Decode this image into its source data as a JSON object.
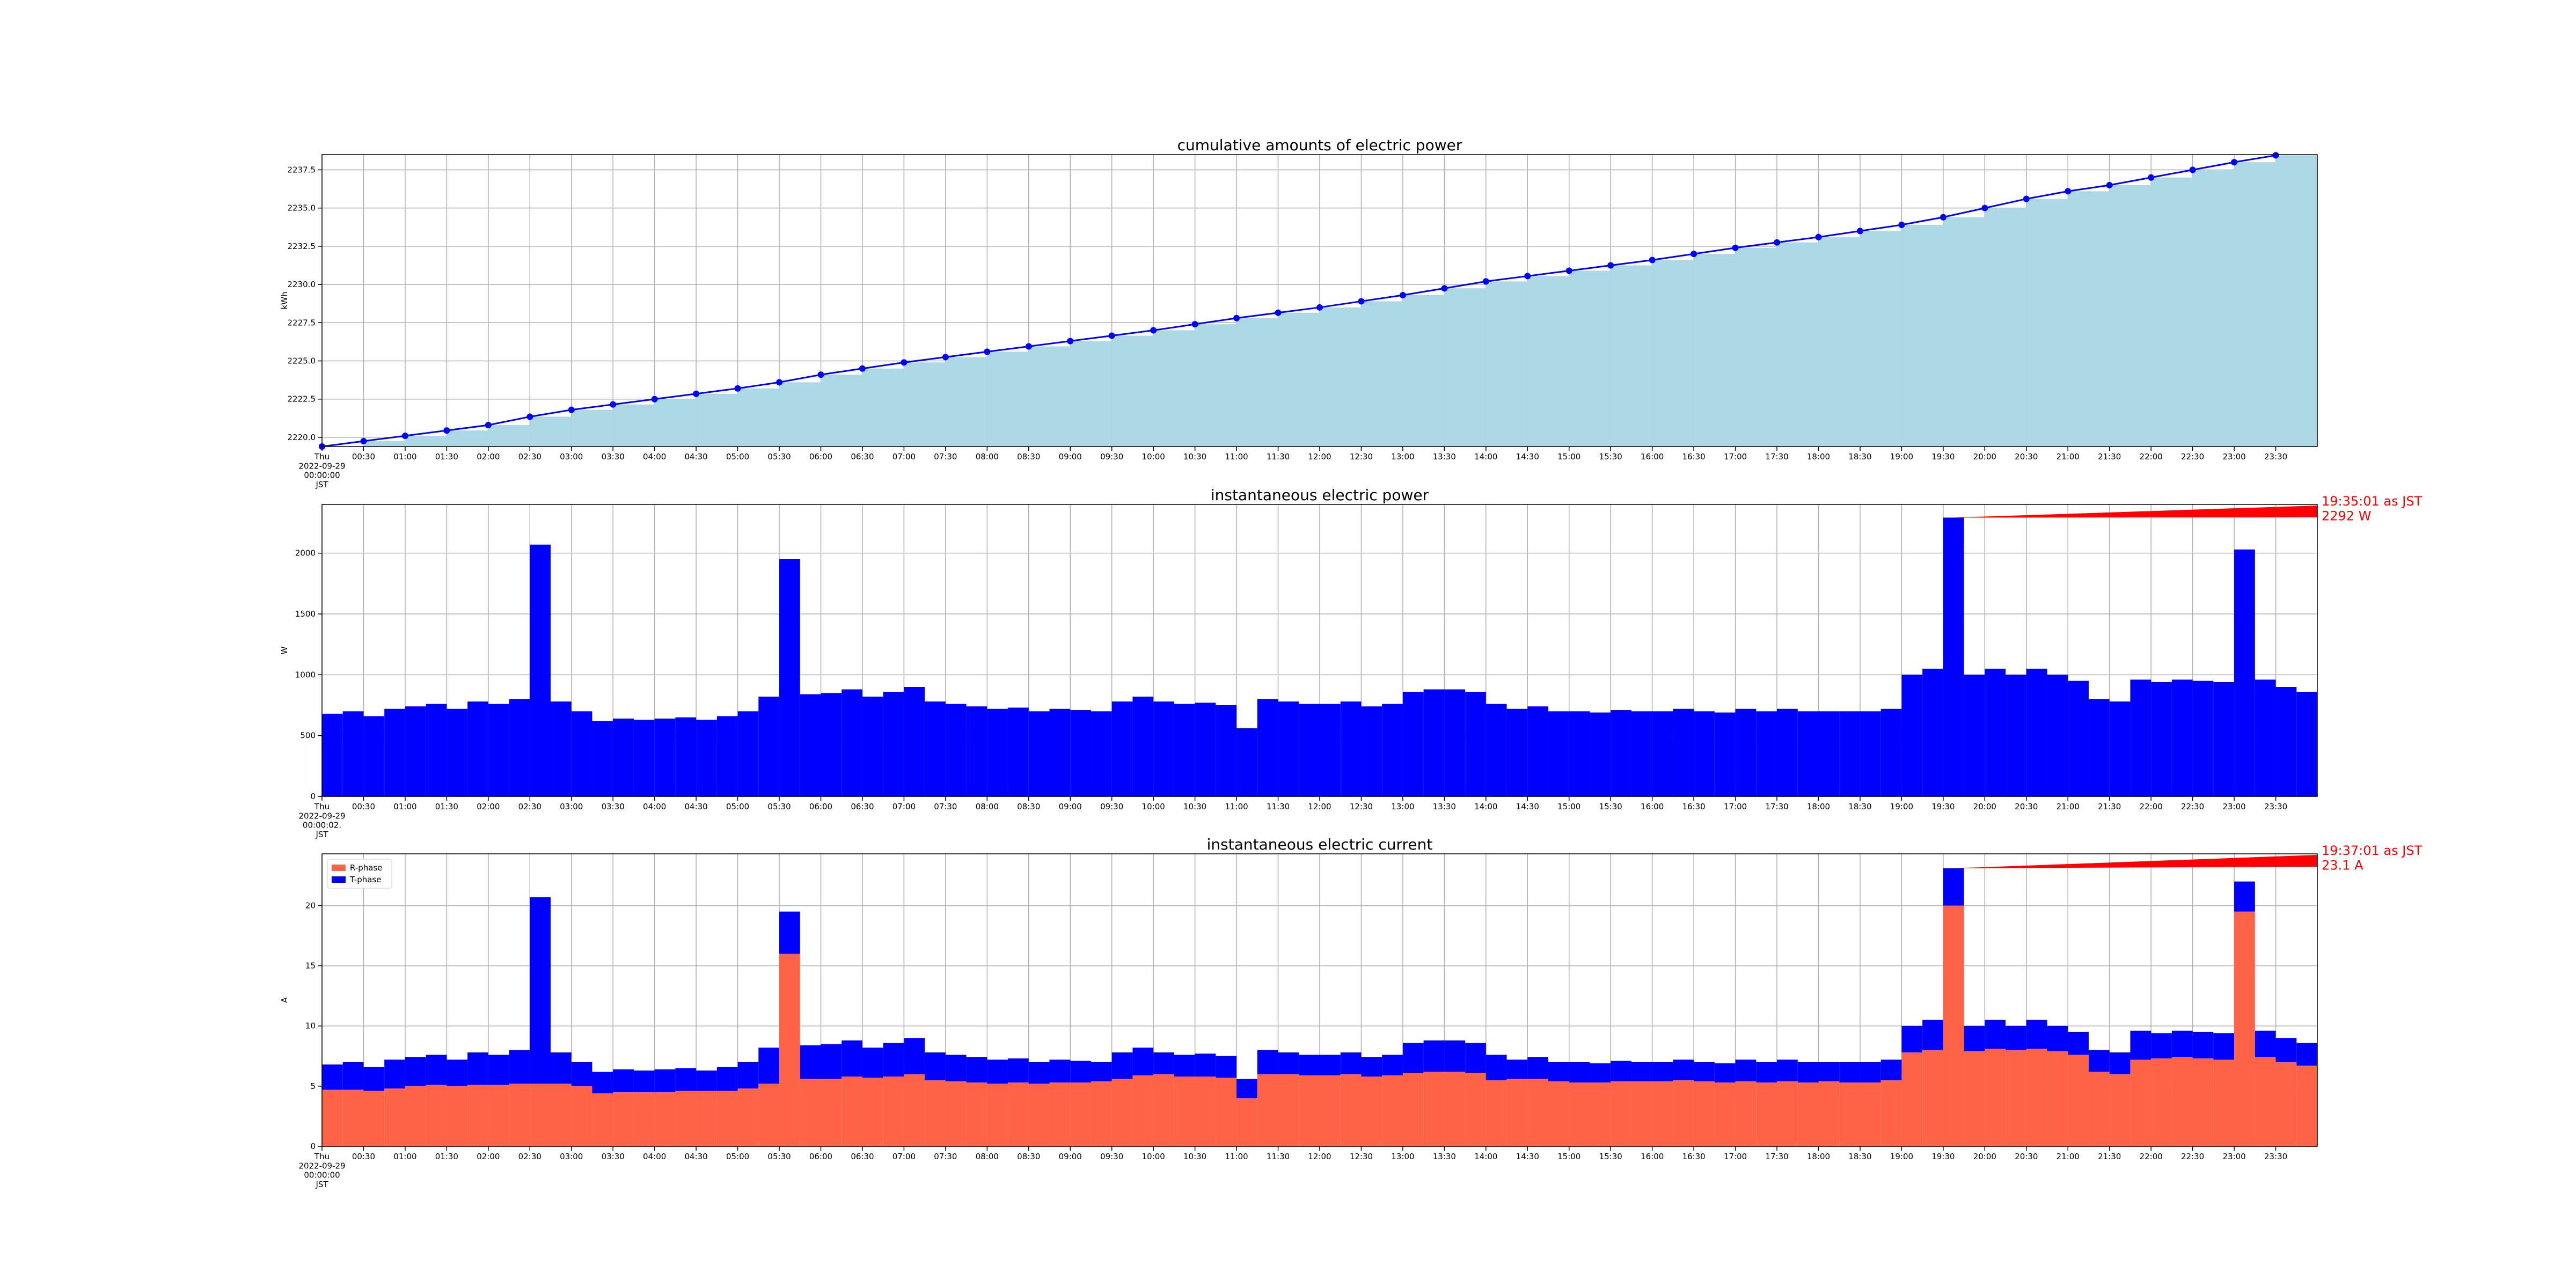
{
  "chart_data": [
    {
      "type": "cumulative",
      "title": "cumulative amounts of electric power",
      "ylabel": "kWh",
      "color": "#0000ff",
      "fill": "#add8e6",
      "grid": true,
      "xlim": [
        "00:00",
        "24:00"
      ],
      "ylim": [
        2219.4,
        2238.5
      ],
      "yticks": [
        {
          "value": 2220,
          "label": "2220.0"
        },
        2222.5,
        {
          "value": 2225,
          "label": "2225.0"
        },
        2227.5,
        {
          "value": 2230,
          "label": "2230.0"
        },
        2232.5,
        {
          "value": 2235,
          "label": "2235.0"
        },
        2237.5
      ],
      "xticks": [
        {
          "value": "00:00",
          "label": "Thu\n2022-09-29\n00:00:00\nJST"
        },
        "00:30",
        "01:00",
        "01:30",
        "02:00",
        "02:30",
        "03:00",
        "03:30",
        "04:00",
        "04:30",
        "05:00",
        "05:30",
        "06:00",
        "06:30",
        "07:00",
        "07:30",
        "08:00",
        "08:30",
        "09:00",
        "09:30",
        "10:00",
        "10:30",
        "11:00",
        "11:30",
        "12:00",
        "12:30",
        "13:00",
        "13:30",
        "14:00",
        "14:30",
        "15:00",
        "15:30",
        "16:00",
        "16:30",
        "17:00",
        "17:30",
        "18:00",
        "18:30",
        "19:00",
        "19:30",
        "20:00",
        "20:30",
        "21:00",
        "21:30",
        "22:00",
        "22:30",
        "23:00",
        "23:30"
      ],
      "x": [
        "00:00",
        "00:30",
        "01:00",
        "01:30",
        "02:00",
        "02:30",
        "03:00",
        "03:30",
        "04:00",
        "04:30",
        "05:00",
        "05:30",
        "06:00",
        "06:30",
        "07:00",
        "07:30",
        "08:00",
        "08:30",
        "09:00",
        "09:30",
        "10:00",
        "10:30",
        "11:00",
        "11:30",
        "12:00",
        "12:30",
        "13:00",
        "13:30",
        "14:00",
        "14:30",
        "15:00",
        "15:30",
        "16:00",
        "16:30",
        "17:00",
        "17:30",
        "18:00",
        "18:30",
        "19:00",
        "19:30",
        "20:00",
        "20:30",
        "21:00",
        "21:30",
        "22:00",
        "22:30",
        "23:00",
        "23:30"
      ],
      "values": [
        2219.4,
        2219.75,
        2220.1,
        2220.45,
        2220.8,
        2221.35,
        2221.8,
        2222.15,
        2222.5,
        2222.85,
        2223.2,
        2223.6,
        2224.1,
        2224.5,
        2224.9,
        2225.25,
        2225.6,
        2225.95,
        2226.3,
        2226.65,
        2227.0,
        2227.4,
        2227.8,
        2228.15,
        2228.5,
        2228.9,
        2229.3,
        2229.75,
        2230.2,
        2230.55,
        2230.9,
        2231.25,
        2231.6,
        2232.0,
        2232.4,
        2232.75,
        2233.1,
        2233.5,
        2233.9,
        2234.4,
        2235.0,
        2235.6,
        2236.1,
        2236.5,
        2237.0,
        2237.5,
        2238.0,
        2238.45
      ]
    },
    {
      "type": "bar",
      "title": "instantaneous electric power",
      "ylabel": "W",
      "color": "#0000ff",
      "grid": true,
      "xlim": [
        "00:00",
        "24:00"
      ],
      "ylim": [
        0,
        2400
      ],
      "yticks": [
        0,
        500,
        1000,
        1500,
        2000
      ],
      "xticks": [
        {
          "value": "00:00",
          "label": "Thu\n2022-09-29\n00:00:02.\nJST"
        },
        "00:30",
        "01:00",
        "01:30",
        "02:00",
        "02:30",
        "03:00",
        "03:30",
        "04:00",
        "04:30",
        "05:00",
        "05:30",
        "06:00",
        "06:30",
        "07:00",
        "07:30",
        "08:00",
        "08:30",
        "09:00",
        "09:30",
        "10:00",
        "10:30",
        "11:00",
        "11:30",
        "12:00",
        "12:30",
        "13:00",
        "13:30",
        "14:00",
        "14:30",
        "15:00",
        "15:30",
        "16:00",
        "16:30",
        "17:00",
        "17:30",
        "18:00",
        "18:30",
        "19:00",
        "19:30",
        "20:00",
        "20:30",
        "21:00",
        "21:30",
        "22:00",
        "22:30",
        "23:00",
        "23:30"
      ],
      "annotation": {
        "text": "19:35:01 as JST\n2292 W",
        "color": "#ff0000"
      },
      "x": [
        "00:00",
        "00:15",
        "00:30",
        "00:45",
        "01:00",
        "01:15",
        "01:30",
        "01:45",
        "02:00",
        "02:15",
        "02:30",
        "02:45",
        "03:00",
        "03:15",
        "03:30",
        "03:45",
        "04:00",
        "04:15",
        "04:30",
        "04:45",
        "05:00",
        "05:15",
        "05:30",
        "05:45",
        "06:00",
        "06:15",
        "06:30",
        "06:45",
        "07:00",
        "07:15",
        "07:30",
        "07:45",
        "08:00",
        "08:15",
        "08:30",
        "08:45",
        "09:00",
        "09:15",
        "09:30",
        "09:45",
        "10:00",
        "10:15",
        "10:30",
        "10:45",
        "11:00",
        "11:15",
        "11:30",
        "11:45",
        "12:00",
        "12:15",
        "12:30",
        "12:45",
        "13:00",
        "13:15",
        "13:30",
        "13:45",
        "14:00",
        "14:15",
        "14:30",
        "14:45",
        "15:00",
        "15:15",
        "15:30",
        "15:45",
        "16:00",
        "16:15",
        "16:30",
        "16:45",
        "17:00",
        "17:15",
        "17:30",
        "17:45",
        "18:00",
        "18:15",
        "18:30",
        "18:45",
        "19:00",
        "19:15",
        "19:30",
        "19:45",
        "20:00",
        "20:15",
        "20:30",
        "20:45",
        "21:00",
        "21:15",
        "21:30",
        "21:45",
        "22:00",
        "22:15",
        "22:30",
        "22:45",
        "23:00",
        "23:15",
        "23:30",
        "23:45"
      ],
      "values": [
        680,
        700,
        660,
        720,
        740,
        760,
        720,
        780,
        760,
        800,
        2070,
        780,
        700,
        620,
        640,
        630,
        640,
        650,
        630,
        660,
        700,
        820,
        1950,
        840,
        850,
        880,
        820,
        860,
        900,
        780,
        760,
        740,
        720,
        730,
        700,
        720,
        710,
        700,
        780,
        820,
        780,
        760,
        770,
        750,
        560,
        800,
        780,
        760,
        760,
        780,
        740,
        760,
        860,
        880,
        880,
        860,
        760,
        720,
        740,
        700,
        700,
        690,
        710,
        700,
        700,
        720,
        700,
        690,
        720,
        700,
        720,
        700,
        700,
        700,
        700,
        720,
        1000,
        1050,
        2292,
        1000,
        1050,
        1000,
        1050,
        1000,
        950,
        800,
        780,
        960,
        940,
        960,
        950,
        940,
        2030,
        960,
        900,
        860
      ]
    },
    {
      "type": "stacked",
      "title": "instantaneous electric current",
      "ylabel": "A",
      "grid": true,
      "legend": "upper left",
      "xlim": [
        "00:00",
        "24:00"
      ],
      "ylim": [
        0,
        24.3
      ],
      "yticks": [
        0,
        5,
        10,
        15,
        20
      ],
      "xticks": [
        {
          "value": "00:00",
          "label": "Thu\n2022-09-29\n00:00:00\nJST"
        },
        "00:30",
        "01:00",
        "01:30",
        "02:00",
        "02:30",
        "03:00",
        "03:30",
        "04:00",
        "04:30",
        "05:00",
        "05:30",
        "06:00",
        "06:30",
        "07:00",
        "07:30",
        "08:00",
        "08:30",
        "09:00",
        "09:30",
        "10:00",
        "10:30",
        "11:00",
        "11:30",
        "12:00",
        "12:30",
        "13:00",
        "13:30",
        "14:00",
        "14:30",
        "15:00",
        "15:30",
        "16:00",
        "16:30",
        "17:00",
        "17:30",
        "18:00",
        "18:30",
        "19:00",
        "19:30",
        "20:00",
        "20:30",
        "21:00",
        "21:30",
        "22:00",
        "22:30",
        "23:00",
        "23:30"
      ],
      "annotation": {
        "text": "19:37:01 as JST\n23.1 A",
        "color": "#ff0000"
      },
      "x": [
        "00:00",
        "00:15",
        "00:30",
        "00:45",
        "01:00",
        "01:15",
        "01:30",
        "01:45",
        "02:00",
        "02:15",
        "02:30",
        "02:45",
        "03:00",
        "03:15",
        "03:30",
        "03:45",
        "04:00",
        "04:15",
        "04:30",
        "04:45",
        "05:00",
        "05:15",
        "05:30",
        "05:45",
        "06:00",
        "06:15",
        "06:30",
        "06:45",
        "07:00",
        "07:15",
        "07:30",
        "07:45",
        "08:00",
        "08:15",
        "08:30",
        "08:45",
        "09:00",
        "09:15",
        "09:30",
        "09:45",
        "10:00",
        "10:15",
        "10:30",
        "10:45",
        "11:00",
        "11:15",
        "11:30",
        "11:45",
        "12:00",
        "12:15",
        "12:30",
        "12:45",
        "13:00",
        "13:15",
        "13:30",
        "13:45",
        "14:00",
        "14:15",
        "14:30",
        "14:45",
        "15:00",
        "15:15",
        "15:30",
        "15:45",
        "16:00",
        "16:15",
        "16:30",
        "16:45",
        "17:00",
        "17:15",
        "17:30",
        "17:45",
        "18:00",
        "18:15",
        "18:30",
        "18:45",
        "19:00",
        "19:15",
        "19:30",
        "19:45",
        "20:00",
        "20:15",
        "20:30",
        "20:45",
        "21:00",
        "21:15",
        "21:30",
        "21:45",
        "22:00",
        "22:15",
        "22:30",
        "22:45",
        "23:00",
        "23:15",
        "23:30",
        "23:45"
      ],
      "series": [
        {
          "name": "R-phase",
          "color": "#ff6347",
          "values": [
            4.7,
            4.7,
            4.6,
            4.8,
            5.0,
            5.1,
            5.0,
            5.1,
            5.1,
            5.2,
            5.2,
            5.2,
            5.0,
            4.4,
            4.5,
            4.5,
            4.5,
            4.6,
            4.6,
            4.6,
            4.8,
            5.2,
            16.0,
            5.6,
            5.6,
            5.8,
            5.7,
            5.8,
            6.0,
            5.5,
            5.4,
            5.3,
            5.2,
            5.3,
            5.2,
            5.3,
            5.3,
            5.4,
            5.6,
            5.9,
            6.0,
            5.8,
            5.8,
            5.7,
            4.0,
            6.0,
            6.0,
            5.9,
            5.9,
            6.0,
            5.8,
            5.9,
            6.1,
            6.2,
            6.2,
            6.1,
            5.5,
            5.6,
            5.6,
            5.4,
            5.3,
            5.3,
            5.4,
            5.4,
            5.4,
            5.5,
            5.4,
            5.3,
            5.4,
            5.3,
            5.4,
            5.3,
            5.4,
            5.3,
            5.3,
            5.5,
            7.8,
            8.0,
            20.0,
            7.9,
            8.1,
            8.0,
            8.1,
            7.9,
            7.6,
            6.2,
            6.0,
            7.2,
            7.3,
            7.4,
            7.3,
            7.2,
            19.5,
            7.4,
            7.0,
            6.7
          ]
        },
        {
          "name": "T-phase",
          "color": "#0000ff",
          "values": [
            2.1,
            2.3,
            2.0,
            2.4,
            2.4,
            2.5,
            2.2,
            2.7,
            2.5,
            2.8,
            15.5,
            2.6,
            2.0,
            1.8,
            1.9,
            1.8,
            1.9,
            1.9,
            1.7,
            2.0,
            2.2,
            3.0,
            3.5,
            2.8,
            2.9,
            3.0,
            2.5,
            2.8,
            3.0,
            2.3,
            2.2,
            2.1,
            2.0,
            2.0,
            1.8,
            1.9,
            1.8,
            1.6,
            2.2,
            2.3,
            1.8,
            1.8,
            1.9,
            1.8,
            1.6,
            2.0,
            1.8,
            1.7,
            1.7,
            1.8,
            1.6,
            1.7,
            2.5,
            2.6,
            2.6,
            2.5,
            2.1,
            1.6,
            1.8,
            1.6,
            1.7,
            1.6,
            1.7,
            1.6,
            1.6,
            1.7,
            1.6,
            1.6,
            1.8,
            1.7,
            1.8,
            1.7,
            1.6,
            1.7,
            1.7,
            1.7,
            2.2,
            2.5,
            3.1,
            2.1,
            2.4,
            2.0,
            2.4,
            2.1,
            1.9,
            1.8,
            1.8,
            2.4,
            2.1,
            2.2,
            2.2,
            2.2,
            2.5,
            2.2,
            2.0,
            1.9
          ]
        }
      ]
    }
  ]
}
